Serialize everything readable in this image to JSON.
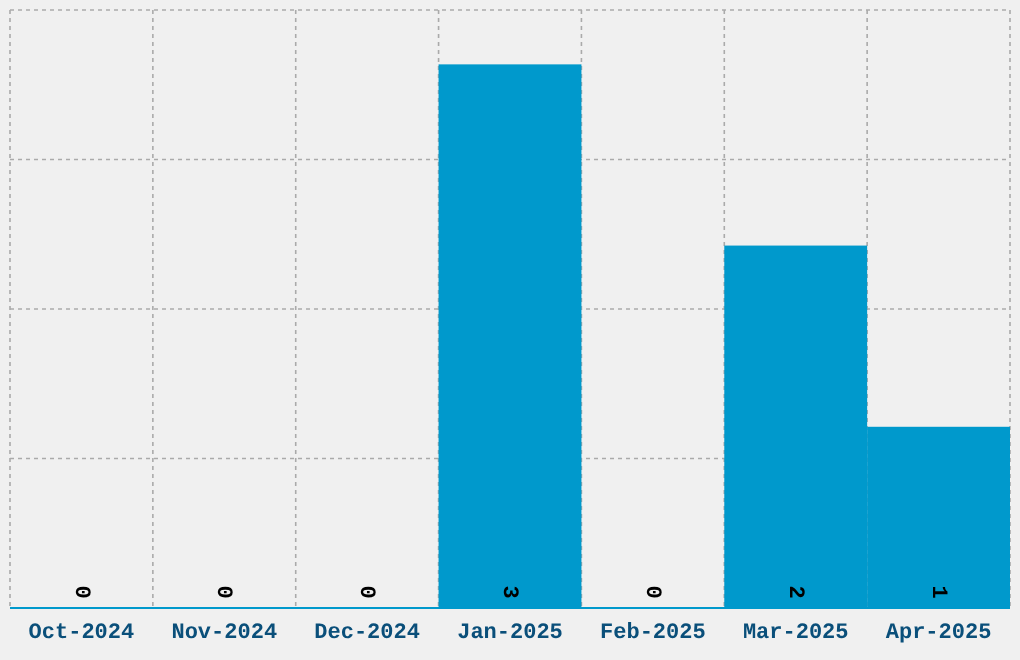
{
  "chart_data": {
    "type": "bar",
    "categories": [
      "Oct-2024",
      "Nov-2024",
      "Dec-2024",
      "Jan-2025",
      "Feb-2025",
      "Mar-2025",
      "Apr-2025"
    ],
    "values": [
      0,
      0,
      0,
      3,
      0,
      2,
      1
    ],
    "color": "#0099cc",
    "data_labels": true,
    "grid": true,
    "tick_labels": "x",
    "ylim": [
      0,
      3.3
    ],
    "yticks": [
      {
        "value": 0,
        "label": null
      },
      {
        "value": 0.825,
        "label": null
      },
      {
        "value": 1.65,
        "label": null
      },
      {
        "value": 2.475,
        "label": null
      },
      {
        "value": 3.3,
        "label": null
      }
    ]
  }
}
